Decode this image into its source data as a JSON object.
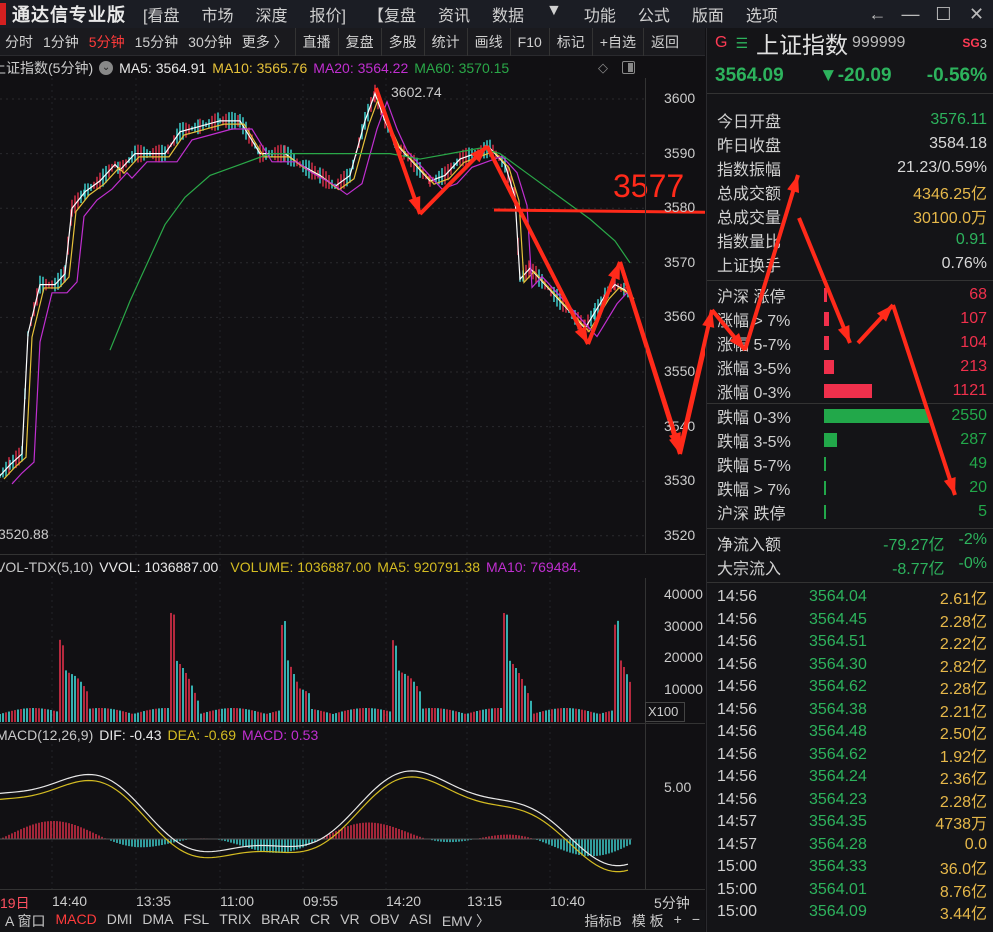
{
  "app": {
    "title": "通达信专业版"
  },
  "menu": {
    "items": [
      "[看盘",
      "市场",
      "深度",
      "报价]",
      "【复盘",
      "资讯",
      "数据",
      "▼",
      "功能",
      "公式",
      "版面",
      "选项"
    ],
    "window_buttons": {
      "back": "←",
      "minimize": "—",
      "maximize": "☐",
      "close": "✕"
    }
  },
  "toolbar": {
    "periods": [
      {
        "label": "分时",
        "active": false
      },
      {
        "label": "1分钟",
        "active": false
      },
      {
        "label": "5分钟",
        "active": true
      },
      {
        "label": "15分钟",
        "active": false
      },
      {
        "label": "30分钟",
        "active": false
      },
      {
        "label": "更多 〉",
        "active": false
      }
    ],
    "actions": [
      "直播",
      "复盘",
      "多股",
      "统计",
      "画线",
      "F10",
      "标记",
      "+自选",
      "返回"
    ]
  },
  "main_chart": {
    "legend": {
      "title": "上证指数(5分钟)",
      "ma5": "MA5: 3564.91",
      "ma10": "MA10: 3565.76",
      "ma20": "MA20: 3564.22",
      "ma60": "MA60: 3570.15"
    },
    "high_label": "3602.74",
    "low_label": "3520.88",
    "annotation_text": "3577",
    "y_ticks": [
      "3600",
      "3590",
      "3580",
      "3570",
      "3560",
      "3550",
      "3540",
      "3530",
      "3520"
    ],
    "colors": {
      "up": "#e0304a",
      "down": "#3fd8d8",
      "ma5": "#ffffff",
      "ma10": "#e6c23a",
      "ma20": "#c02fd0",
      "ma60": "#2aa848",
      "annotation": "#ff2a1a"
    }
  },
  "volume_chart": {
    "legend": {
      "title": "VOL-TDX(5,10)",
      "vvol": "VVOL: 1036887.00",
      "volume": "VOLUME: 1036887.00",
      "ma5": "MA5: 920791.38",
      "ma10": "MA10: 769484."
    },
    "y_ticks": [
      "40000",
      "30000",
      "20000",
      "10000"
    ],
    "unit": "X100"
  },
  "macd_chart": {
    "legend": {
      "title": "MACD(12,26,9)",
      "dif": "DIF: -0.43",
      "dea": "DEA: -0.69",
      "macd": "MACD: 0.53"
    },
    "y_ticks": [
      "5.00"
    ]
  },
  "x_axis": {
    "labels": [
      "19日",
      "14:40",
      "13:35",
      "11:00",
      "09:55",
      "14:20",
      "13:15",
      "10:40"
    ],
    "period": "5分钟"
  },
  "bottom_tabs": {
    "items": [
      {
        "label": "A 窗口",
        "active": false
      },
      {
        "label": "MACD",
        "active": true
      },
      {
        "label": "DMI",
        "active": false
      },
      {
        "label": "DMA",
        "active": false
      },
      {
        "label": "FSL",
        "active": false
      },
      {
        "label": "TRIX",
        "active": false
      },
      {
        "label": "BRAR",
        "active": false
      },
      {
        "label": "CR",
        "active": false
      },
      {
        "label": "VR",
        "active": false
      },
      {
        "label": "OBV",
        "active": false
      },
      {
        "label": "ASI",
        "active": false
      },
      {
        "label": "EMV 〉",
        "active": false
      }
    ],
    "right": [
      "指标B",
      "模 板",
      "+",
      "−"
    ]
  },
  "right_panel": {
    "header": {
      "g": "G",
      "menu": "☰",
      "name": "上证指数",
      "code": "999999",
      "badge": "SG",
      "badge_num": "3"
    },
    "quote": {
      "price": "3564.09",
      "change": "▼-20.09",
      "pct": "-0.56%"
    },
    "stats": [
      {
        "label": "今日开盘",
        "value": "3576.11",
        "color": "green"
      },
      {
        "label": "昨日收盘",
        "value": "3584.18",
        "color": "white"
      },
      {
        "label": "指数振幅",
        "value": "21.23/0.59%",
        "color": "white"
      },
      {
        "label": "总成交额",
        "value": "4346.25亿",
        "color": "yellow"
      },
      {
        "label": "总成交量",
        "value": "30100.0万",
        "color": "yellow"
      },
      {
        "label": "指数量比",
        "value": "0.91",
        "color": "green"
      },
      {
        "label": "上证换手",
        "value": "0.76%",
        "color": "white"
      }
    ],
    "up_dist": [
      {
        "label": "沪深 涨停",
        "value": "68",
        "bar": 3
      },
      {
        "label": "涨幅 > 7%",
        "value": "107",
        "bar": 5
      },
      {
        "label": "涨幅 5-7%",
        "value": "104",
        "bar": 5
      },
      {
        "label": "涨幅 3-5%",
        "value": "213",
        "bar": 10
      },
      {
        "label": "涨幅 0-3%",
        "value": "1121",
        "bar": 48
      }
    ],
    "down_dist": [
      {
        "label": "跌幅 0-3%",
        "value": "2550",
        "bar": 105
      },
      {
        "label": "跌幅 3-5%",
        "value": "287",
        "bar": 13
      },
      {
        "label": "跌幅 5-7%",
        "value": "49",
        "bar": 2
      },
      {
        "label": "跌幅 > 7%",
        "value": "20",
        "bar": 2
      },
      {
        "label": "沪深 跌停",
        "value": "5",
        "bar": 2
      }
    ],
    "flows": [
      {
        "label": "净流入额",
        "value": "-79.27亿",
        "pct": "-2%"
      },
      {
        "label": "大宗流入",
        "value": "-8.77亿",
        "pct": "-0%"
      }
    ],
    "ticks": [
      {
        "time": "14:56",
        "price": "3564.04",
        "amount": "2.61亿"
      },
      {
        "time": "14:56",
        "price": "3564.45",
        "amount": "2.28亿"
      },
      {
        "time": "14:56",
        "price": "3564.51",
        "amount": "2.22亿"
      },
      {
        "time": "14:56",
        "price": "3564.30",
        "amount": "2.82亿"
      },
      {
        "time": "14:56",
        "price": "3564.62",
        "amount": "2.28亿"
      },
      {
        "time": "14:56",
        "price": "3564.38",
        "amount": "2.21亿"
      },
      {
        "time": "14:56",
        "price": "3564.48",
        "amount": "2.50亿"
      },
      {
        "time": "14:56",
        "price": "3564.62",
        "amount": "1.92亿"
      },
      {
        "time": "14:56",
        "price": "3564.24",
        "amount": "2.36亿"
      },
      {
        "time": "14:56",
        "price": "3564.23",
        "amount": "2.28亿"
      },
      {
        "time": "14:57",
        "price": "3564.35",
        "amount": "4738万"
      },
      {
        "time": "14:57",
        "price": "3564.28",
        "amount": "0.0"
      },
      {
        "time": "15:00",
        "price": "3564.33",
        "amount": "36.0亿"
      },
      {
        "time": "15:00",
        "price": "3564.01",
        "amount": "8.76亿"
      },
      {
        "time": "15:00",
        "price": "3564.09",
        "amount": "3.44亿"
      }
    ]
  }
}
